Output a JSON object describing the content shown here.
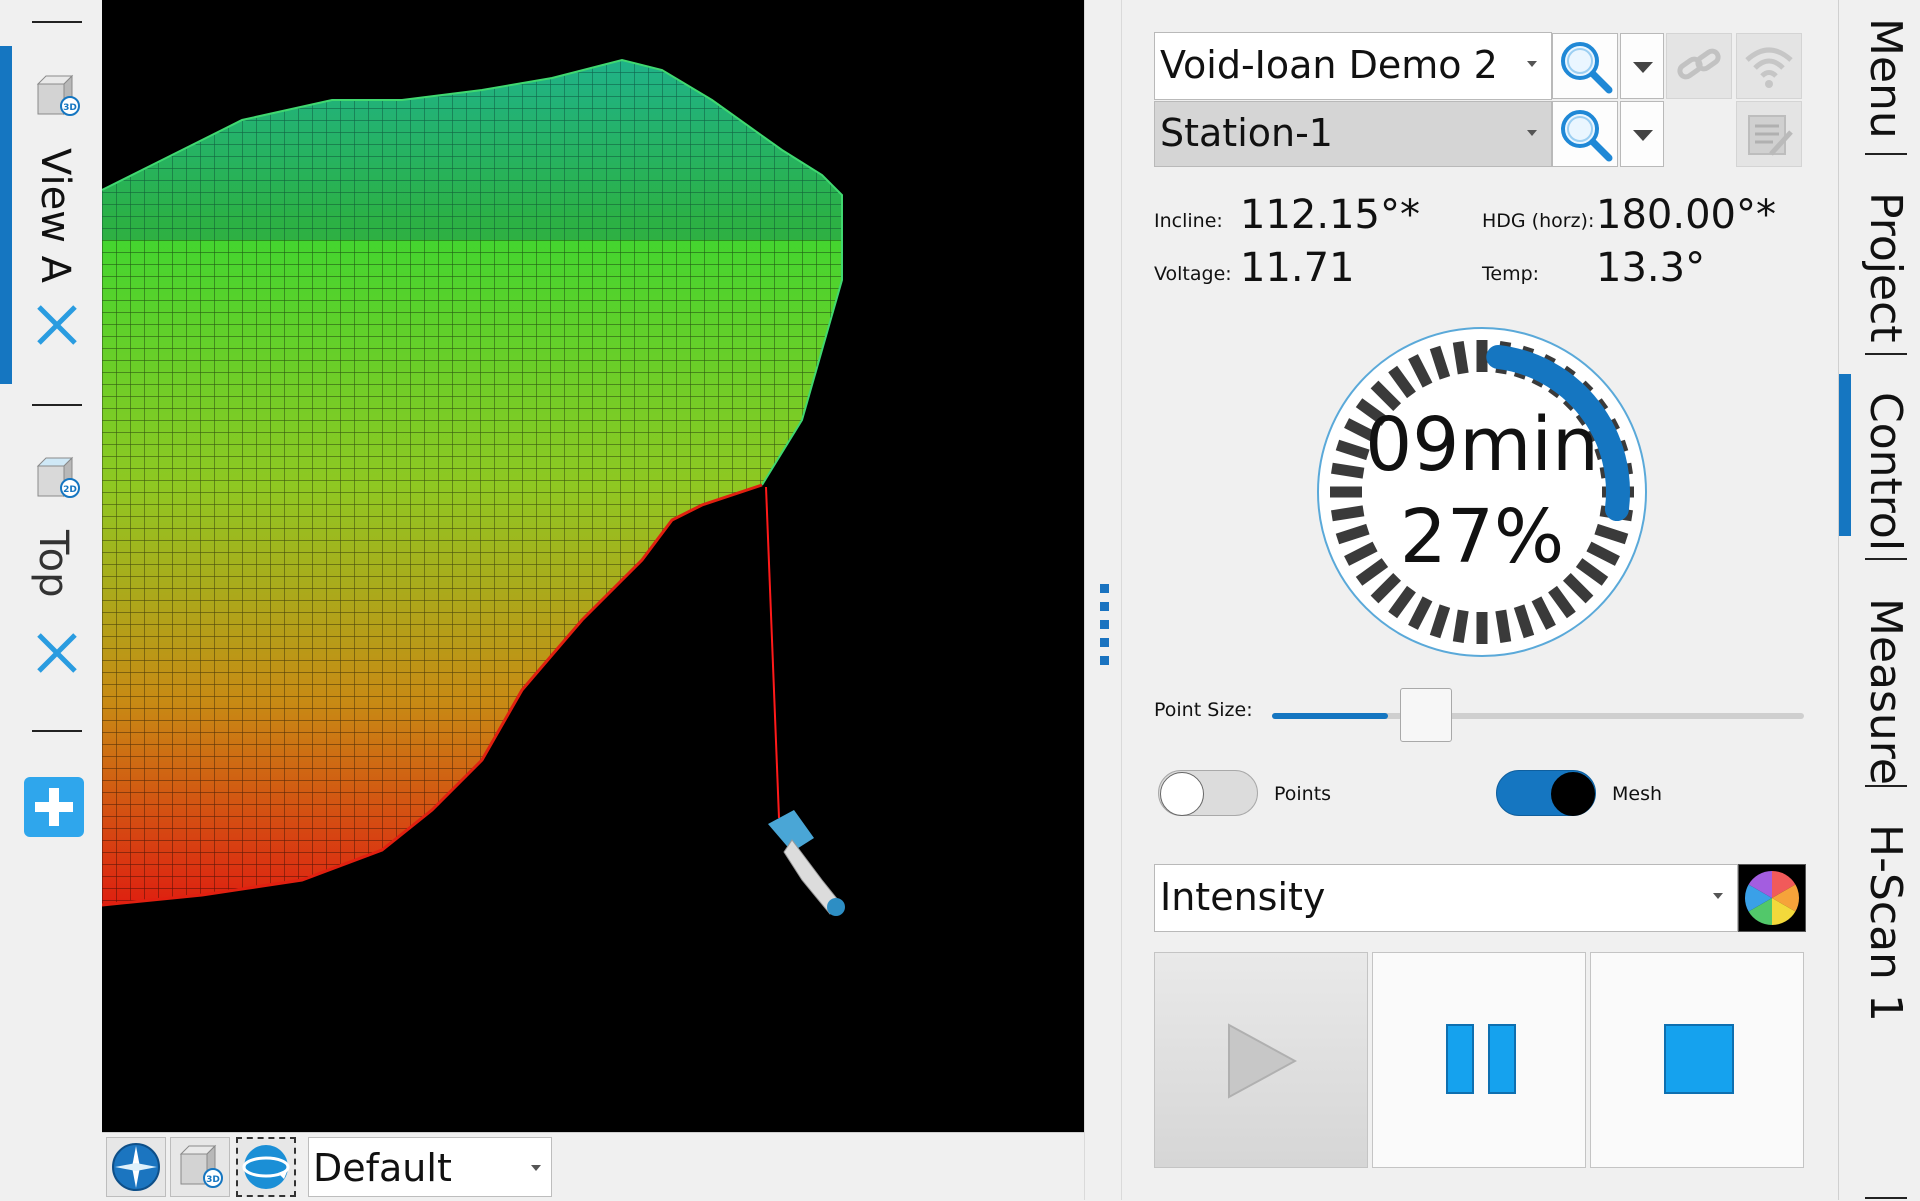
{
  "left_tabs": {
    "tabs": [
      {
        "label": "View A",
        "icon": "cube-3d-icon",
        "badge": "3D",
        "active": true
      },
      {
        "label": "Top",
        "icon": "cube-2d-icon",
        "badge": "2D",
        "active": false
      }
    ],
    "add_icon": "add-icon",
    "accent": "#1576c1",
    "close_color": "#2a9ce0"
  },
  "viewport": {
    "background": "#000000"
  },
  "bottom_toolbar": {
    "view_preset": "Default",
    "badge": "3D"
  },
  "panel": {
    "project_select": "Void-Ioan Demo 2",
    "station_select": "Station-1",
    "readouts": {
      "incline_label": "Incline:",
      "incline_value": "112.15°*",
      "hdg_label": "HDG (horz):",
      "hdg_value": "180.00°*",
      "voltage_label": "Voltage:",
      "voltage_value": "11.71",
      "temp_label": "Temp:",
      "temp_value": "13.3°"
    },
    "progress": {
      "time": "09min",
      "percent_text": "27%",
      "fraction": 0.27
    },
    "point_size_label": "Point Size:",
    "point_size_fraction": 0.2,
    "points_label": "Points",
    "points_on": false,
    "mesh_label": "Mesh",
    "mesh_on": true,
    "color_mode": "Intensity",
    "accent": "#1576c1",
    "control_blue": "#15a2ee"
  },
  "right_tabs": {
    "tabs": [
      {
        "label": "Menu",
        "active": false
      },
      {
        "label": "Project",
        "active": false
      },
      {
        "label": "Control",
        "active": true
      },
      {
        "label": "Measure",
        "active": false
      },
      {
        "label": "H-Scan 1",
        "active": false
      }
    ]
  }
}
